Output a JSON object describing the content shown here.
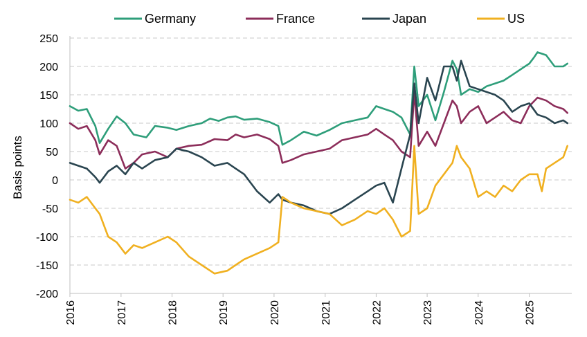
{
  "chart_data": {
    "type": "line",
    "ylabel": "Basis points",
    "xlabel": "",
    "ylim": [
      -200,
      250
    ],
    "xlim": [
      "2016-01-01",
      "2025-11-01"
    ],
    "yticks": [
      250,
      200,
      150,
      100,
      50,
      0,
      -50,
      -100,
      -150,
      -200
    ],
    "xticks": [
      "2016",
      "2017",
      "2018",
      "2019",
      "2020",
      "2021",
      "2022",
      "2023",
      "2024",
      "2025"
    ],
    "grid": "horizontal dashed",
    "legend_position": "top",
    "series": [
      {
        "name": "Germany",
        "color": "#2e9e7a",
        "x": [
          "2016-01",
          "2016-03",
          "2016-05",
          "2016-07",
          "2016-08",
          "2016-10",
          "2016-12",
          "2017-02",
          "2017-04",
          "2017-07",
          "2017-09",
          "2017-12",
          "2018-02",
          "2018-05",
          "2018-08",
          "2018-10",
          "2018-12",
          "2019-02",
          "2019-04",
          "2019-06",
          "2019-09",
          "2019-12",
          "2020-02",
          "2020-03",
          "2020-05",
          "2020-08",
          "2020-11",
          "2021-02",
          "2021-05",
          "2021-08",
          "2021-11",
          "2022-01",
          "2022-03",
          "2022-05",
          "2022-07",
          "2022-09",
          "2022-10",
          "2022-11",
          "2023-01",
          "2023-03",
          "2023-05",
          "2023-07",
          "2023-08",
          "2023-09",
          "2023-11",
          "2024-01",
          "2024-03",
          "2024-05",
          "2024-07",
          "2024-09",
          "2024-11",
          "2025-01",
          "2025-02",
          "2025-03",
          "2025-05",
          "2025-07",
          "2025-09",
          "2025-10"
        ],
        "values": [
          130,
          122,
          125,
          95,
          65,
          90,
          112,
          100,
          80,
          75,
          95,
          92,
          88,
          95,
          100,
          108,
          104,
          110,
          112,
          106,
          108,
          102,
          95,
          62,
          70,
          85,
          78,
          88,
          100,
          105,
          110,
          130,
          125,
          120,
          110,
          80,
          200,
          130,
          150,
          105,
          155,
          210,
          195,
          150,
          160,
          155,
          165,
          170,
          175,
          185,
          195,
          205,
          215,
          225,
          220,
          200,
          200,
          205
        ]
      },
      {
        "name": "France",
        "color": "#8c2d5a",
        "x": [
          "2016-01",
          "2016-03",
          "2016-05",
          "2016-07",
          "2016-08",
          "2016-10",
          "2016-12",
          "2017-02",
          "2017-04",
          "2017-06",
          "2017-09",
          "2017-12",
          "2018-02",
          "2018-05",
          "2018-08",
          "2018-11",
          "2019-02",
          "2019-04",
          "2019-06",
          "2019-09",
          "2019-12",
          "2020-02",
          "2020-03",
          "2020-05",
          "2020-08",
          "2020-11",
          "2021-02",
          "2021-05",
          "2021-08",
          "2021-11",
          "2022-01",
          "2022-03",
          "2022-05",
          "2022-07",
          "2022-09",
          "2022-10",
          "2022-11",
          "2023-01",
          "2023-03",
          "2023-05",
          "2023-07",
          "2023-08",
          "2023-09",
          "2023-11",
          "2024-01",
          "2024-03",
          "2024-05",
          "2024-07",
          "2024-09",
          "2024-11",
          "2025-01",
          "2025-03",
          "2025-05",
          "2025-07",
          "2025-09",
          "2025-10"
        ],
        "values": [
          100,
          90,
          95,
          70,
          45,
          70,
          60,
          20,
          30,
          45,
          50,
          40,
          55,
          60,
          62,
          72,
          70,
          80,
          75,
          80,
          72,
          60,
          30,
          35,
          45,
          50,
          55,
          70,
          75,
          80,
          90,
          80,
          70,
          50,
          40,
          155,
          60,
          85,
          60,
          100,
          140,
          130,
          100,
          120,
          130,
          100,
          110,
          120,
          105,
          100,
          130,
          145,
          140,
          130,
          125,
          118
        ]
      },
      {
        "name": "Japan",
        "color": "#2a4550",
        "x": [
          "2016-01",
          "2016-03",
          "2016-05",
          "2016-07",
          "2016-08",
          "2016-10",
          "2016-12",
          "2017-02",
          "2017-04",
          "2017-06",
          "2017-09",
          "2017-12",
          "2018-02",
          "2018-05",
          "2018-08",
          "2018-11",
          "2019-02",
          "2019-04",
          "2019-06",
          "2019-09",
          "2019-12",
          "2020-02",
          "2020-03",
          "2020-05",
          "2020-08",
          "2020-11",
          "2021-02",
          "2021-05",
          "2021-08",
          "2021-11",
          "2022-01",
          "2022-03",
          "2022-05",
          "2022-07",
          "2022-09",
          "2022-10",
          "2022-11",
          "2023-01",
          "2023-03",
          "2023-05",
          "2023-07",
          "2023-08",
          "2023-09",
          "2023-11",
          "2024-01",
          "2024-03",
          "2024-05",
          "2024-07",
          "2024-09",
          "2024-11",
          "2025-01",
          "2025-03",
          "2025-05",
          "2025-07",
          "2025-09",
          "2025-10"
        ],
        "values": [
          30,
          25,
          20,
          5,
          -5,
          15,
          25,
          10,
          30,
          20,
          35,
          40,
          55,
          50,
          40,
          25,
          30,
          20,
          10,
          -20,
          -40,
          -25,
          -35,
          -40,
          -45,
          -55,
          -60,
          -50,
          -35,
          -20,
          -10,
          -5,
          -40,
          20,
          80,
          170,
          100,
          180,
          140,
          200,
          200,
          175,
          210,
          165,
          160,
          155,
          150,
          140,
          120,
          130,
          135,
          115,
          110,
          100,
          105,
          100
        ]
      },
      {
        "name": "US",
        "color": "#f0b020",
        "x": [
          "2016-01",
          "2016-03",
          "2016-05",
          "2016-07",
          "2016-08",
          "2016-10",
          "2016-12",
          "2017-02",
          "2017-04",
          "2017-06",
          "2017-09",
          "2017-12",
          "2018-02",
          "2018-05",
          "2018-08",
          "2018-11",
          "2019-02",
          "2019-04",
          "2019-06",
          "2019-09",
          "2019-12",
          "2020-02",
          "2020-03",
          "2020-05",
          "2020-08",
          "2020-11",
          "2021-02",
          "2021-05",
          "2021-08",
          "2021-11",
          "2022-01",
          "2022-03",
          "2022-05",
          "2022-07",
          "2022-09",
          "2022-10",
          "2022-11",
          "2023-01",
          "2023-03",
          "2023-05",
          "2023-07",
          "2023-08",
          "2023-09",
          "2023-11",
          "2024-01",
          "2024-03",
          "2024-05",
          "2024-07",
          "2024-09",
          "2024-11",
          "2025-01",
          "2025-03",
          "2025-04",
          "2025-05",
          "2025-07",
          "2025-09",
          "2025-10"
        ],
        "values": [
          -35,
          -40,
          -30,
          -50,
          -60,
          -100,
          -110,
          -130,
          -115,
          -120,
          -110,
          -100,
          -110,
          -135,
          -150,
          -165,
          -160,
          -150,
          -140,
          -130,
          -120,
          -110,
          -30,
          -40,
          -50,
          -55,
          -60,
          -80,
          -70,
          -55,
          -60,
          -50,
          -70,
          -100,
          -90,
          60,
          -60,
          -50,
          -10,
          10,
          30,
          60,
          40,
          20,
          -30,
          -20,
          -30,
          -10,
          -20,
          0,
          10,
          10,
          -20,
          20,
          30,
          40,
          60
        ]
      }
    ]
  }
}
